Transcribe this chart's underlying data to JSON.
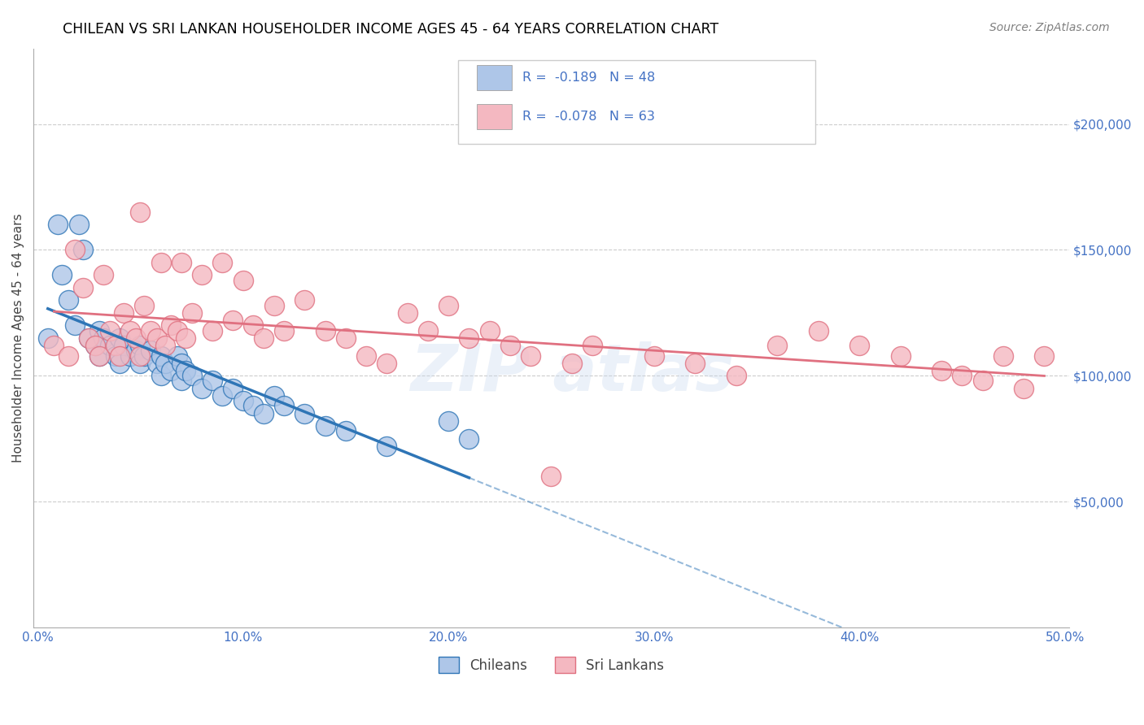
{
  "title": "CHILEAN VS SRI LANKAN HOUSEHOLDER INCOME AGES 45 - 64 YEARS CORRELATION CHART",
  "source_text": "Source: ZipAtlas.com",
  "ylabel": "Householder Income Ages 45 - 64 years",
  "xlim": [
    -0.002,
    0.502
  ],
  "ylim": [
    0,
    230000
  ],
  "yticks": [
    50000,
    100000,
    150000,
    200000
  ],
  "ytick_labels": [
    "$50,000",
    "$100,000",
    "$150,000",
    "$200,000"
  ],
  "xtick_labels": [
    "0.0%",
    "10.0%",
    "20.0%",
    "30.0%",
    "40.0%",
    "50.0%"
  ],
  "xticks": [
    0.0,
    0.1,
    0.2,
    0.3,
    0.4,
    0.5
  ],
  "title_color": "#2e75b6",
  "source_color": "#808080",
  "tick_color": "#4472c4",
  "blue_scatter_color": "#aec6e8",
  "blue_line_color": "#2e75b6",
  "pink_scatter_color": "#f4b8c1",
  "pink_line_color": "#e07080",
  "blue_x": [
    0.005,
    0.01,
    0.012,
    0.015,
    0.018,
    0.02,
    0.022,
    0.025,
    0.028,
    0.03,
    0.03,
    0.032,
    0.035,
    0.038,
    0.04,
    0.04,
    0.042,
    0.045,
    0.048,
    0.05,
    0.05,
    0.052,
    0.055,
    0.058,
    0.06,
    0.06,
    0.062,
    0.065,
    0.068,
    0.07,
    0.07,
    0.072,
    0.075,
    0.08,
    0.085,
    0.09,
    0.095,
    0.1,
    0.105,
    0.11,
    0.115,
    0.12,
    0.13,
    0.14,
    0.15,
    0.17,
    0.2,
    0.21
  ],
  "blue_y": [
    115000,
    160000,
    140000,
    130000,
    120000,
    160000,
    150000,
    115000,
    112000,
    118000,
    108000,
    115000,
    112000,
    108000,
    115000,
    105000,
    112000,
    108000,
    110000,
    112000,
    105000,
    108000,
    110000,
    105000,
    108000,
    100000,
    105000,
    102000,
    108000,
    105000,
    98000,
    102000,
    100000,
    95000,
    98000,
    92000,
    95000,
    90000,
    88000,
    85000,
    92000,
    88000,
    85000,
    80000,
    78000,
    72000,
    82000,
    75000
  ],
  "pink_x": [
    0.008,
    0.015,
    0.018,
    0.022,
    0.025,
    0.028,
    0.03,
    0.032,
    0.035,
    0.038,
    0.04,
    0.042,
    0.045,
    0.048,
    0.05,
    0.05,
    0.052,
    0.055,
    0.058,
    0.06,
    0.062,
    0.065,
    0.068,
    0.07,
    0.072,
    0.075,
    0.08,
    0.085,
    0.09,
    0.095,
    0.1,
    0.105,
    0.11,
    0.115,
    0.12,
    0.13,
    0.14,
    0.15,
    0.16,
    0.17,
    0.18,
    0.19,
    0.2,
    0.21,
    0.22,
    0.23,
    0.24,
    0.25,
    0.26,
    0.27,
    0.3,
    0.32,
    0.34,
    0.36,
    0.38,
    0.4,
    0.42,
    0.44,
    0.45,
    0.46,
    0.47,
    0.48,
    0.49
  ],
  "pink_y": [
    112000,
    108000,
    150000,
    135000,
    115000,
    112000,
    108000,
    140000,
    118000,
    112000,
    108000,
    125000,
    118000,
    115000,
    165000,
    108000,
    128000,
    118000,
    115000,
    145000,
    112000,
    120000,
    118000,
    145000,
    115000,
    125000,
    140000,
    118000,
    145000,
    122000,
    138000,
    120000,
    115000,
    128000,
    118000,
    130000,
    118000,
    115000,
    108000,
    105000,
    125000,
    118000,
    128000,
    115000,
    118000,
    112000,
    108000,
    60000,
    105000,
    112000,
    108000,
    105000,
    100000,
    112000,
    118000,
    112000,
    108000,
    102000,
    100000,
    98000,
    108000,
    95000,
    108000
  ]
}
